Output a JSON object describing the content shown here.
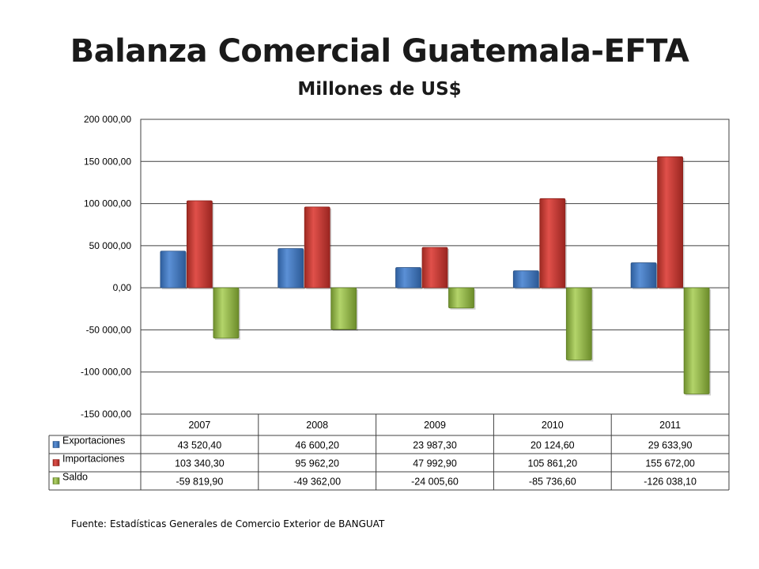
{
  "chart_data": {
    "type": "bar",
    "title": "Balanza Comercial Guatemala-EFTA",
    "subtitle": "Millones de US$",
    "categories": [
      "2007",
      "2008",
      "2009",
      "2010",
      "2011"
    ],
    "series": [
      {
        "name": "Exportaciones",
        "color": "#4a7ebb",
        "values": [
          43520.4,
          46600.2,
          23987.3,
          20124.6,
          29633.9
        ],
        "labels": [
          "43 520,40",
          "46 600,20",
          "23 987,30",
          "20 124,60",
          "29 633,90"
        ]
      },
      {
        "name": "Importaciones",
        "color": "#c0392b",
        "values": [
          103340.3,
          95962.2,
          47992.9,
          105861.2,
          155672.0
        ],
        "labels": [
          "103 340,30",
          "95 962,20",
          "47 992,90",
          "105 861,20",
          "155 672,00"
        ]
      },
      {
        "name": "Saldo",
        "color": "#9bbb59",
        "values": [
          -59819.9,
          -49362.0,
          -24005.6,
          -85736.6,
          -126038.1
        ],
        "labels": [
          "-59 819,90",
          "-49 362,00",
          "-24 005,60",
          "-85 736,60",
          "-126 038,10"
        ]
      }
    ],
    "ylim": [
      -150000,
      200000
    ],
    "yticks": [
      {
        "value": 200000,
        "label": "200 000,00"
      },
      {
        "value": 150000,
        "label": "150 000,00"
      },
      {
        "value": 100000,
        "label": "100 000,00"
      },
      {
        "value": 50000,
        "label": "50 000,00"
      },
      {
        "value": 0,
        "label": "0,00"
      },
      {
        "value": -50000,
        "label": "-50 000,00"
      },
      {
        "value": -100000,
        "label": "-100 000,00"
      },
      {
        "value": -150000,
        "label": "-150 000,00"
      }
    ],
    "grid": true,
    "legend": "data-table-left"
  },
  "source": {
    "label": "Fuente:",
    "text": "Estadísticas Generales de Comercio Exterior de BANGUAT"
  }
}
